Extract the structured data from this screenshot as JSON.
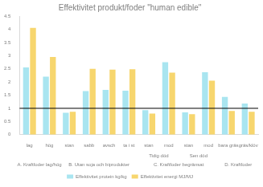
{
  "chart_data": {
    "type": "bar",
    "title": "Effektivitet produkt/foder \"human edible\"",
    "categories": [
      "lag",
      "hög",
      "stan",
      "sabb",
      "avsch",
      "ta i st",
      "stan",
      "mod",
      "stan",
      "mod",
      "bara gräs",
      "gräs/klöv"
    ],
    "series": [
      {
        "name": "Effektivitet protein kg/kg",
        "color": "#a9e5f0",
        "values": [
          2.55,
          2.2,
          0.83,
          1.65,
          1.7,
          1.67,
          0.93,
          2.75,
          0.85,
          2.37,
          1.43,
          1.18
        ]
      },
      {
        "name": "Effektivitet energi MJ/MJ",
        "color": "#f7d66e",
        "values": [
          4.05,
          2.95,
          0.87,
          2.5,
          2.47,
          2.48,
          0.8,
          2.35,
          0.78,
          2.05,
          0.9,
          0.87
        ]
      }
    ],
    "subgroups": [
      {
        "label": "Tidig död",
        "start": 6,
        "end": 7
      },
      {
        "label": "Sen död",
        "start": 8,
        "end": 9
      }
    ],
    "groups": [
      {
        "label": "A. Kraftfoder lag/hög",
        "start": 0,
        "end": 1
      },
      {
        "label": "B. Utan soja och biprodukter",
        "start": 2,
        "end": 5
      },
      {
        "label": "C. Kraftfoder begränsat",
        "start": 6,
        "end": 9
      },
      {
        "label": "D. Kraftfoder",
        "start": 10,
        "end": 11
      }
    ],
    "reference_lines": [
      1
    ],
    "ylim": [
      0,
      4.5
    ],
    "yticks": [
      0,
      0.5,
      1,
      1.5,
      2,
      2.5,
      3,
      3.5,
      4,
      4.5
    ],
    "grid": false,
    "legend": "bottom"
  }
}
